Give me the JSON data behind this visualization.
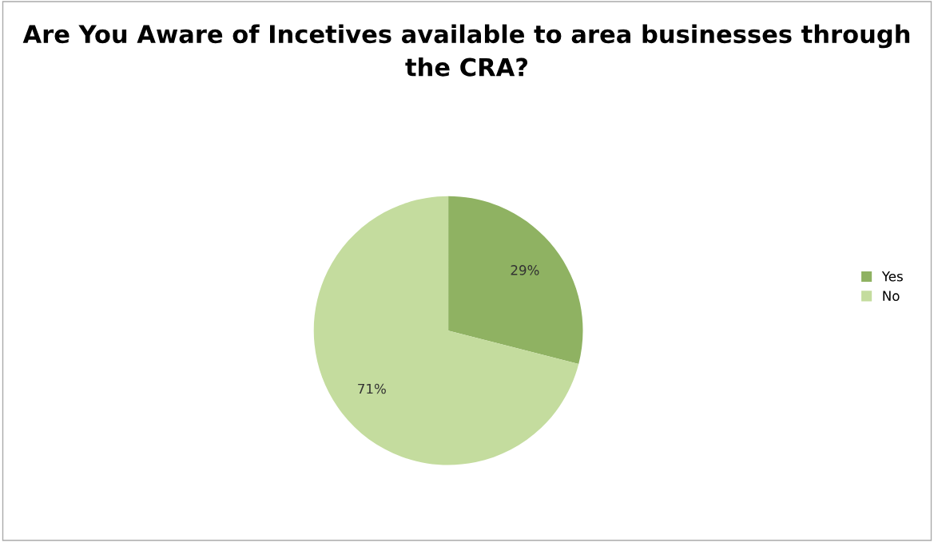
{
  "chart_data": {
    "type": "pie",
    "title": "Are You Aware of Incetives available to area businesses through the CRA?",
    "categories": [
      "Yes",
      "No"
    ],
    "values": [
      29,
      71
    ],
    "value_labels": [
      "29%",
      "71%"
    ],
    "colors": [
      "#8fb262",
      "#c4dc9e"
    ],
    "legend": "right"
  }
}
